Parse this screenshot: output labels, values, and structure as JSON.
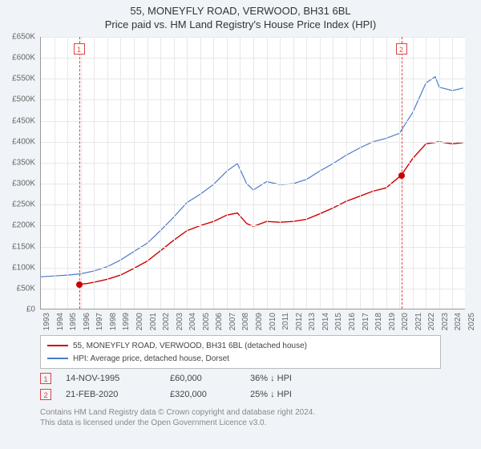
{
  "title_line1": "55, MONEYFLY ROAD, VERWOOD, BH31 6BL",
  "title_line2": "Price paid vs. HM Land Registry's House Price Index (HPI)",
  "chart": {
    "type": "line",
    "background_color": "#ffffff",
    "panel_color": "#f0f4f8",
    "grid_color": "#e8e8e8",
    "axis_color": "#999999",
    "text_color": "#666666",
    "ylim": [
      0,
      650000
    ],
    "ytick_step": 50000,
    "ytick_labels": [
      "£0",
      "£50K",
      "£100K",
      "£150K",
      "£200K",
      "£250K",
      "£300K",
      "£350K",
      "£400K",
      "£450K",
      "£500K",
      "£550K",
      "£600K",
      "£650K"
    ],
    "xlim": [
      1993,
      2025
    ],
    "xtick_step": 1,
    "xtick_labels": [
      "1993",
      "1994",
      "1995",
      "1996",
      "1997",
      "1998",
      "1999",
      "2000",
      "2001",
      "2002",
      "2003",
      "2004",
      "2005",
      "2006",
      "2007",
      "2008",
      "2009",
      "2010",
      "2011",
      "2012",
      "2013",
      "2014",
      "2015",
      "2016",
      "2017",
      "2018",
      "2019",
      "2020",
      "2021",
      "2022",
      "2023",
      "2024",
      "2025"
    ],
    "label_fontsize": 10,
    "title_fontsize": 13,
    "series": [
      {
        "name": "price_paid",
        "label": "55, MONEYFLY ROAD, VERWOOD, BH31 6BL (detached house)",
        "color": "#cc0000",
        "line_width": 1.4,
        "data": [
          [
            1995.87,
            60000
          ],
          [
            1996.5,
            62000
          ],
          [
            1997,
            65000
          ],
          [
            1998,
            72000
          ],
          [
            1999,
            82000
          ],
          [
            2000,
            98000
          ],
          [
            2001,
            115000
          ],
          [
            2002,
            140000
          ],
          [
            2003,
            165000
          ],
          [
            2004,
            188000
          ],
          [
            2005,
            200000
          ],
          [
            2006,
            210000
          ],
          [
            2007,
            225000
          ],
          [
            2007.8,
            230000
          ],
          [
            2008.5,
            205000
          ],
          [
            2009,
            198000
          ],
          [
            2010,
            210000
          ],
          [
            2011,
            208000
          ],
          [
            2012,
            210000
          ],
          [
            2013,
            215000
          ],
          [
            2014,
            228000
          ],
          [
            2015,
            242000
          ],
          [
            2016,
            258000
          ],
          [
            2017,
            270000
          ],
          [
            2018,
            282000
          ],
          [
            2019,
            290000
          ],
          [
            2020.14,
            320000
          ],
          [
            2021,
            360000
          ],
          [
            2022,
            395000
          ],
          [
            2023,
            400000
          ],
          [
            2024,
            395000
          ],
          [
            2024.8,
            398000
          ]
        ]
      },
      {
        "name": "hpi",
        "label": "HPI: Average price, detached house, Dorset",
        "color": "#4a7bc8",
        "line_width": 1.2,
        "data": [
          [
            1993,
            78000
          ],
          [
            1994,
            80000
          ],
          [
            1995,
            82000
          ],
          [
            1996,
            85000
          ],
          [
            1997,
            92000
          ],
          [
            1998,
            102000
          ],
          [
            1999,
            118000
          ],
          [
            2000,
            138000
          ],
          [
            2001,
            158000
          ],
          [
            2002,
            188000
          ],
          [
            2003,
            220000
          ],
          [
            2004,
            255000
          ],
          [
            2005,
            275000
          ],
          [
            2006,
            298000
          ],
          [
            2007,
            330000
          ],
          [
            2007.8,
            348000
          ],
          [
            2008.5,
            300000
          ],
          [
            2009,
            285000
          ],
          [
            2010,
            305000
          ],
          [
            2011,
            298000
          ],
          [
            2012,
            300000
          ],
          [
            2013,
            310000
          ],
          [
            2014,
            330000
          ],
          [
            2015,
            348000
          ],
          [
            2016,
            368000
          ],
          [
            2017,
            385000
          ],
          [
            2018,
            400000
          ],
          [
            2019,
            408000
          ],
          [
            2020,
            420000
          ],
          [
            2021,
            470000
          ],
          [
            2022,
            540000
          ],
          [
            2022.7,
            555000
          ],
          [
            2023,
            530000
          ],
          [
            2024,
            522000
          ],
          [
            2024.8,
            528000
          ]
        ]
      }
    ],
    "markers": [
      {
        "n": "1",
        "year": 1995.87,
        "box_top": 8
      },
      {
        "n": "2",
        "year": 2020.14,
        "box_top": 8
      }
    ],
    "sale_points": [
      {
        "year": 1995.87,
        "value": 60000,
        "color": "#cc0000"
      },
      {
        "year": 2020.14,
        "value": 320000,
        "color": "#cc0000"
      }
    ]
  },
  "legend": {
    "rows": [
      {
        "color": "#cc0000",
        "label": "55, MONEYFLY ROAD, VERWOOD, BH31 6BL (detached house)"
      },
      {
        "color": "#4a7bc8",
        "label": "HPI: Average price, detached house, Dorset"
      }
    ]
  },
  "sales": [
    {
      "n": "1",
      "date": "14-NOV-1995",
      "price": "£60,000",
      "diff": "36% ↓ HPI"
    },
    {
      "n": "2",
      "date": "21-FEB-2020",
      "price": "£320,000",
      "diff": "25% ↓ HPI"
    }
  ],
  "attribution_line1": "Contains HM Land Registry data © Crown copyright and database right 2024.",
  "attribution_line2": "This data is licensed under the Open Government Licence v3.0."
}
